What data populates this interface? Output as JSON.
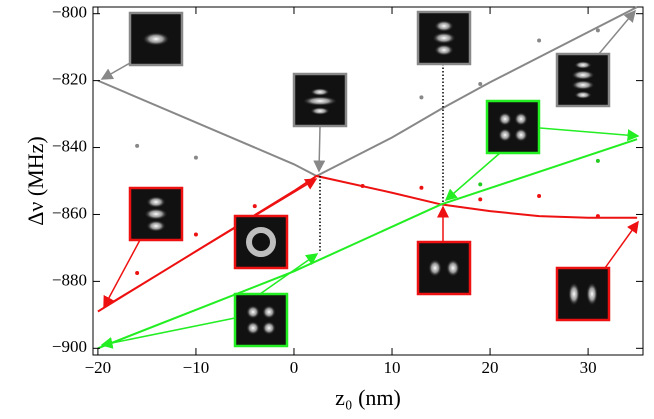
{
  "chart_data": {
    "type": "line",
    "x_label": "z₀ (nm)",
    "y_label": "Δν (MHz)",
    "xlim": [
      -20.5,
      35.6
    ],
    "ylim": [
      -902,
      -798
    ],
    "xticks": [
      {
        "value": -20,
        "label": "−20"
      },
      {
        "value": -10,
        "label": "−10"
      },
      0,
      10,
      20,
      30
    ],
    "yticks": [
      {
        "value": -800,
        "label": "−800"
      },
      {
        "value": -820,
        "label": "−820"
      },
      {
        "value": -840,
        "label": "−840"
      },
      {
        "value": -860,
        "label": "−860"
      },
      {
        "value": -880,
        "label": "−880"
      },
      {
        "value": -900,
        "label": "−900"
      }
    ],
    "series": [
      {
        "type": "line",
        "color": "#888888",
        "x": [
          -20,
          -10,
          0,
          2.3,
          10,
          15,
          20,
          30,
          35
        ],
        "values": [
          -820,
          -832.5,
          -845,
          -848.5,
          -837,
          -828.5,
          -820.5,
          -805.5,
          -798
        ]
      },
      {
        "type": "line",
        "color": "#ee1111",
        "x": [
          -20,
          -10,
          0,
          2.3,
          10,
          15,
          20,
          25,
          30,
          35
        ],
        "values": [
          -889,
          -871,
          -853,
          -848.5,
          -853.5,
          -857,
          -859,
          -860.5,
          -861,
          -861
        ]
      },
      {
        "type": "line",
        "color": "#22ee22",
        "x": [
          -20,
          0,
          15,
          35
        ],
        "values": [
          -900,
          -877,
          -857,
          -837.5
        ]
      },
      {
        "type": "scatter",
        "color": "#888888",
        "x": [
          -16,
          -10,
          13,
          19,
          25,
          31
        ],
        "values": [
          -839.5,
          -843,
          -825,
          -821,
          -808,
          -805
        ]
      },
      {
        "type": "scatter",
        "color": "#ee1111",
        "x": [
          -16,
          -10,
          -4,
          7,
          13,
          19,
          25,
          31
        ],
        "values": [
          -877.5,
          -866,
          -857.5,
          -851.5,
          -852,
          -855.5,
          -854.5,
          -860.5
        ]
      },
      {
        "type": "scatter",
        "color": "#22cc22",
        "x": [
          19,
          31
        ],
        "values": [
          -851,
          -844
        ]
      }
    ]
  }
}
